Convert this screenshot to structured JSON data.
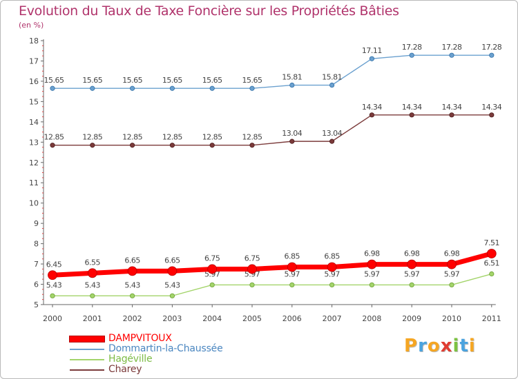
{
  "title": "Evolution du Taux de Taxe Foncière sur les Propriétés Bâties",
  "unit_label": "(en %)",
  "chart_data": {
    "type": "line",
    "title": "Evolution du Taux de Taxe Foncière sur les Propriétés Bâties",
    "ylabel": "(en %)",
    "xlabel": "",
    "ylim": [
      5,
      18
    ],
    "y_ticks": [
      "5",
      "6",
      "7",
      "8",
      "9",
      "10",
      "11",
      "12",
      "13",
      "14",
      "15",
      "16",
      "17",
      "18"
    ],
    "categories": [
      "2000",
      "2001",
      "2002",
      "2003",
      "2004",
      "2005",
      "2006",
      "2007",
      "2008",
      "2009",
      "2010",
      "2011"
    ],
    "series": [
      {
        "name": "DAMPVITOUX",
        "color": "#ff0000",
        "values": [
          6.45,
          6.55,
          6.65,
          6.65,
          6.75,
          6.75,
          6.85,
          6.85,
          6.98,
          6.98,
          6.98,
          7.51
        ],
        "labels": [
          "6.45",
          "6.55",
          "6.65",
          "6.65",
          "6.75",
          "6.75",
          "6.85",
          "6.85",
          "6.98",
          "6.98",
          "6.98",
          "7.51"
        ],
        "label_pos": "above"
      },
      {
        "name": "Dommartin-la-Chaussée",
        "color": "#6aa0cf",
        "values": [
          15.65,
          15.65,
          15.65,
          15.65,
          15.65,
          15.65,
          15.81,
          15.81,
          17.11,
          17.28,
          17.28,
          17.28
        ],
        "labels": [
          "15.65",
          "15.65",
          "15.65",
          "15.65",
          "15.65",
          "15.65",
          "15.81",
          "15.81",
          "17.11",
          "17.28",
          "17.28",
          "17.28"
        ],
        "label_pos": "above"
      },
      {
        "name": "Hagéville",
        "color": "#a3d46a",
        "values": [
          5.43,
          5.43,
          5.43,
          5.43,
          5.97,
          5.97,
          5.97,
          5.97,
          5.97,
          5.97,
          5.97,
          6.51
        ],
        "labels": [
          "5.43",
          "5.43",
          "5.43",
          "5.43",
          "5.97",
          "5.97",
          "5.97",
          "5.97",
          "5.97",
          "5.97",
          "5.97",
          "6.51"
        ],
        "label_pos": "above"
      },
      {
        "name": "Charey",
        "color": "#7b3a3a",
        "values": [
          12.85,
          12.85,
          12.85,
          12.85,
          12.85,
          12.85,
          13.04,
          13.04,
          14.34,
          14.34,
          14.34,
          14.34
        ],
        "labels": [
          "12.85",
          "12.85",
          "12.85",
          "12.85",
          "12.85",
          "12.85",
          "13.04",
          "13.04",
          "14.34",
          "14.34",
          "14.34",
          "14.34"
        ],
        "label_pos": "above"
      }
    ],
    "grid": false,
    "legend": "bottom-left"
  },
  "logo": {
    "letters": [
      "P",
      "r",
      "o",
      "x",
      "i",
      "t",
      "i"
    ],
    "colors": [
      "#f5a623",
      "#4aa3df",
      "#f5a623",
      "#e03c31",
      "#7cc242",
      "#4aa3df",
      "#f5a623"
    ]
  }
}
